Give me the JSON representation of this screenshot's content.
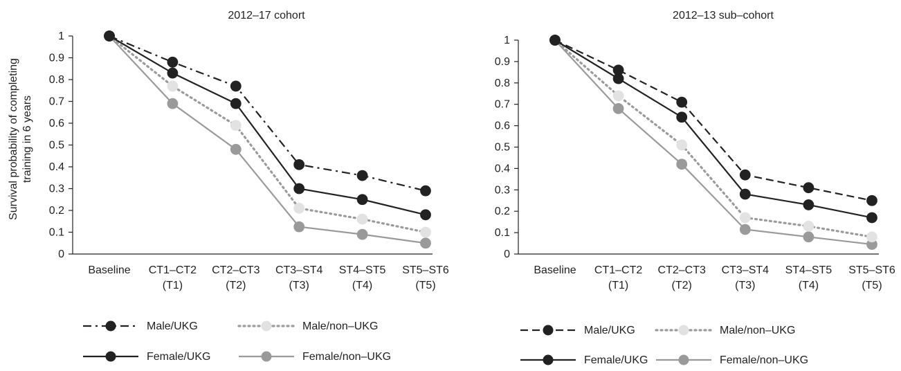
{
  "y_axis_label_lines": [
    "Survival probability of completing",
    "training in  6 years"
  ],
  "chart_data": [
    {
      "type": "line",
      "title": "2012–17 cohort",
      "ylim": [
        0,
        1
      ],
      "yticks": [
        "0",
        "0.1",
        "0.2",
        "0.3",
        "0.4",
        "0.5",
        "0.6",
        "0.7",
        "0.8",
        "0.9",
        "1"
      ],
      "categories": [
        [
          "Baseline"
        ],
        [
          "CT1–CT2",
          "(T1)"
        ],
        [
          "CT2–CT3",
          "(T2)"
        ],
        [
          "CT3–ST4",
          "(T3)"
        ],
        [
          "ST4–ST5",
          "(T4)"
        ],
        [
          "ST5–ST6",
          "(T5)"
        ]
      ],
      "grid": false,
      "legend_position": "bottom",
      "series": [
        {
          "name": "Male/UKG",
          "values": [
            1,
            0.88,
            0.77,
            0.41,
            0.36,
            0.29
          ],
          "line_color": "#222222",
          "marker_color": "#222222",
          "dash": "dashdot"
        },
        {
          "name": "Male/non–UKG",
          "values": [
            1,
            0.77,
            0.59,
            0.21,
            0.16,
            0.1
          ],
          "line_color": "#9a9a9a",
          "marker_color": "#e2e2e2",
          "dash": "dotted"
        },
        {
          "name": "Female/UKG",
          "values": [
            1,
            0.83,
            0.69,
            0.3,
            0.25,
            0.18
          ],
          "line_color": "#222222",
          "marker_color": "#222222",
          "dash": "solid"
        },
        {
          "name": "Female/non–UKG",
          "values": [
            1,
            0.69,
            0.48,
            0.125,
            0.09,
            0.05
          ],
          "line_color": "#9a9a9a",
          "marker_color": "#9a9a9a",
          "dash": "solid"
        }
      ]
    },
    {
      "type": "line",
      "title": "2012–13 sub–cohort",
      "ylim": [
        0,
        1
      ],
      "yticks": [
        "0",
        "0.1",
        "0.2",
        "0.3",
        "0.4",
        "0.5",
        "0.6",
        "0.7",
        "0.8",
        "0.9",
        "1"
      ],
      "categories": [
        [
          "Baseline"
        ],
        [
          "CT1–CT2",
          "(T1)"
        ],
        [
          "CT2–CT3",
          "(T2)"
        ],
        [
          "CT3–ST4",
          "(T3)"
        ],
        [
          "ST4–ST5",
          "(T4)"
        ],
        [
          "ST5–ST6",
          "(T5)"
        ]
      ],
      "grid": false,
      "legend_position": "bottom",
      "series": [
        {
          "name": "Male/UKG",
          "values": [
            1,
            0.86,
            0.71,
            0.37,
            0.31,
            0.25
          ],
          "line_color": "#222222",
          "marker_color": "#222222",
          "dash": "dashed"
        },
        {
          "name": "Male/non–UKG",
          "values": [
            1,
            0.74,
            0.51,
            0.17,
            0.13,
            0.08
          ],
          "line_color": "#9a9a9a",
          "marker_color": "#e2e2e2",
          "dash": "dotted"
        },
        {
          "name": "Female/UKG",
          "values": [
            1,
            0.82,
            0.64,
            0.28,
            0.23,
            0.17
          ],
          "line_color": "#222222",
          "marker_color": "#222222",
          "dash": "solid"
        },
        {
          "name": "Female/non–UKG",
          "values": [
            1,
            0.68,
            0.42,
            0.115,
            0.08,
            0.045
          ],
          "line_color": "#9a9a9a",
          "marker_color": "#9a9a9a",
          "dash": "solid"
        }
      ]
    }
  ]
}
